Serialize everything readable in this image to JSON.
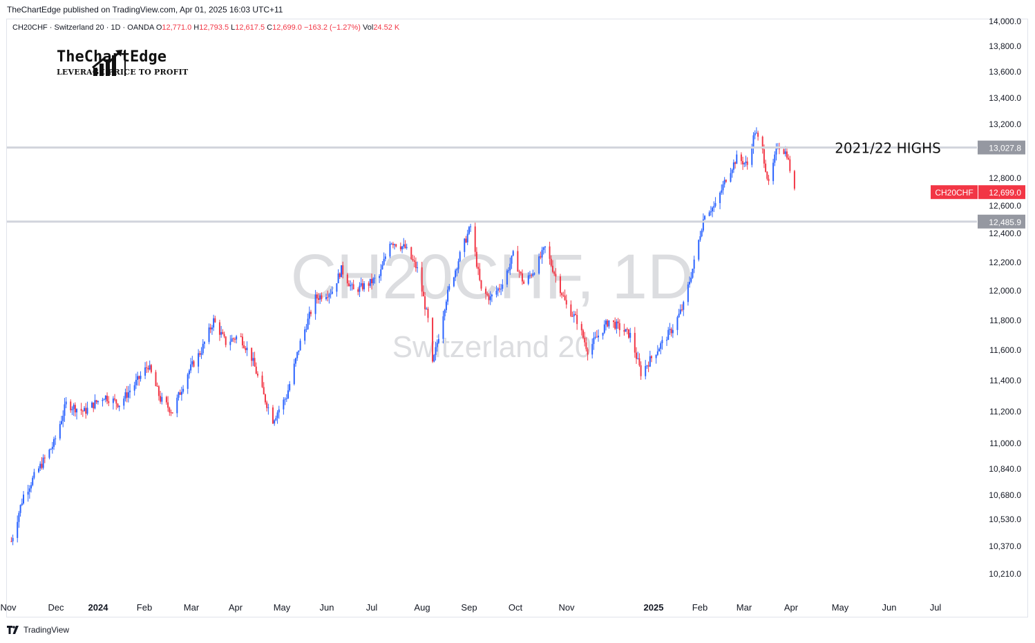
{
  "header": {
    "published": "TheChartEdge published on TradingView.com, Apr 01, 2025 16:03 UTC+11"
  },
  "legend": {
    "symbol": "CH20CHF · Switzerland 20 · 1D · OANDA",
    "o_label": "O",
    "o": "12,771.0",
    "h_label": "H",
    "h": "12,793.5",
    "l_label": "L",
    "l": "12,617.5",
    "c_label": "C",
    "c": "12,699.0",
    "change": "−163.2 (−1.27%)",
    "vol_label": "Vol",
    "vol": "24.52 K"
  },
  "logo": {
    "name": "TheChartEdge",
    "tagline": "LEVERAGE PRICE TO PROFIT"
  },
  "watermark": {
    "line1": "CH20CHF, 1D",
    "line2": "Switzerland 20"
  },
  "footer": {
    "brand": "TradingView"
  },
  "colors": {
    "up": "#2962ff",
    "down": "#f23645",
    "level_line": "#d1d4dc",
    "level_badge": "#9598a1",
    "price_badge": "#f23645"
  },
  "chart_data": {
    "type": "candlestick",
    "symbol": "CH20CHF",
    "timeframe": "1D",
    "y_ticks": [
      "14,000.0",
      "13,800.0",
      "13,600.0",
      "13,400.0",
      "13,200.0",
      "12,800.0",
      "12,600.0",
      "12,400.0",
      "12,200.0",
      "12,000.0",
      "11,800.0",
      "11,600.0",
      "11,400.0",
      "11,200.0",
      "11,000.0",
      "10,840.0",
      "10,680.0",
      "10,530.0",
      "10,370.0",
      "10,210.0"
    ],
    "x_ticks": [
      {
        "label": "Nov",
        "bold": false
      },
      {
        "label": "Dec",
        "bold": false
      },
      {
        "label": "2024",
        "bold": true
      },
      {
        "label": "Feb",
        "bold": false
      },
      {
        "label": "Mar",
        "bold": false
      },
      {
        "label": "Apr",
        "bold": false
      },
      {
        "label": "May",
        "bold": false
      },
      {
        "label": "Jun",
        "bold": false
      },
      {
        "label": "Jul",
        "bold": false
      },
      {
        "label": "Aug",
        "bold": false
      },
      {
        "label": "Sep",
        "bold": false
      },
      {
        "label": "Oct",
        "bold": false
      },
      {
        "label": "Nov",
        "bold": false
      },
      {
        "label": "2025",
        "bold": true
      },
      {
        "label": "Feb",
        "bold": false
      },
      {
        "label": "Mar",
        "bold": false
      },
      {
        "label": "Apr",
        "bold": false
      },
      {
        "label": "May",
        "bold": false
      },
      {
        "label": "Jun",
        "bold": false
      },
      {
        "label": "Jul",
        "bold": false
      }
    ],
    "levels": [
      {
        "value": 13027.8,
        "label": "13,027.8",
        "annotation": "2021/22 HIGHS"
      },
      {
        "value": 12485.9,
        "label": "12,485.9",
        "annotation": ""
      }
    ],
    "last_price": {
      "symbol": "CH20CHF",
      "label": "12,699.0",
      "value": 12699.0
    },
    "trend_points": [
      [
        "2023-11-02",
        10400
      ],
      [
        "2023-11-10",
        10680
      ],
      [
        "2023-11-20",
        10840
      ],
      [
        "2023-11-30",
        11000
      ],
      [
        "2023-12-08",
        11250
      ],
      [
        "2023-12-20",
        11200
      ],
      [
        "2024-01-02",
        11300
      ],
      [
        "2024-01-12",
        11250
      ],
      [
        "2024-01-24",
        11400
      ],
      [
        "2024-01-31",
        11500
      ],
      [
        "2024-02-08",
        11280
      ],
      [
        "2024-02-16",
        11200
      ],
      [
        "2024-02-26",
        11450
      ],
      [
        "2024-03-06",
        11600
      ],
      [
        "2024-03-14",
        11800
      ],
      [
        "2024-03-22",
        11650
      ],
      [
        "2024-03-31",
        11700
      ],
      [
        "2024-04-08",
        11550
      ],
      [
        "2024-04-16",
        11300
      ],
      [
        "2024-04-22",
        11150
      ],
      [
        "2024-05-01",
        11300
      ],
      [
        "2024-05-10",
        11650
      ],
      [
        "2024-05-20",
        11950
      ],
      [
        "2024-05-31",
        12000
      ],
      [
        "2024-06-06",
        12150
      ],
      [
        "2024-06-14",
        12000
      ],
      [
        "2024-06-24",
        12050
      ],
      [
        "2024-07-01",
        12100
      ],
      [
        "2024-07-08",
        12350
      ],
      [
        "2024-07-18",
        12300
      ],
      [
        "2024-07-26",
        12150
      ],
      [
        "2024-08-02",
        11800
      ],
      [
        "2024-08-05",
        11500
      ],
      [
        "2024-08-14",
        11950
      ],
      [
        "2024-08-23",
        12250
      ],
      [
        "2024-08-30",
        12450
      ],
      [
        "2024-09-06",
        12000
      ],
      [
        "2024-09-12",
        11950
      ],
      [
        "2024-09-20",
        12050
      ],
      [
        "2024-09-27",
        12250
      ],
      [
        "2024-10-04",
        12050
      ],
      [
        "2024-10-11",
        12150
      ],
      [
        "2024-10-18",
        12300
      ],
      [
        "2024-10-25",
        12100
      ],
      [
        "2024-11-01",
        11900
      ],
      [
        "2024-11-08",
        11800
      ],
      [
        "2024-11-15",
        11600
      ],
      [
        "2024-11-22",
        11700
      ],
      [
        "2024-11-29",
        11800
      ],
      [
        "2024-12-06",
        11750
      ],
      [
        "2024-12-13",
        11700
      ],
      [
        "2024-12-20",
        11450
      ],
      [
        "2024-12-27",
        11550
      ],
      [
        "2025-01-03",
        11650
      ],
      [
        "2025-01-10",
        11750
      ],
      [
        "2025-01-17",
        11900
      ],
      [
        "2025-01-24",
        12200
      ],
      [
        "2025-01-31",
        12550
      ],
      [
        "2025-02-07",
        12600
      ],
      [
        "2025-02-14",
        12800
      ],
      [
        "2025-02-21",
        12950
      ],
      [
        "2025-02-28",
        12900
      ],
      [
        "2025-03-05",
        13150
      ],
      [
        "2025-03-10",
        13000
      ],
      [
        "2025-03-14",
        12750
      ],
      [
        "2025-03-20",
        13050
      ],
      [
        "2025-03-26",
        12980
      ],
      [
        "2025-03-31",
        12699
      ]
    ]
  }
}
